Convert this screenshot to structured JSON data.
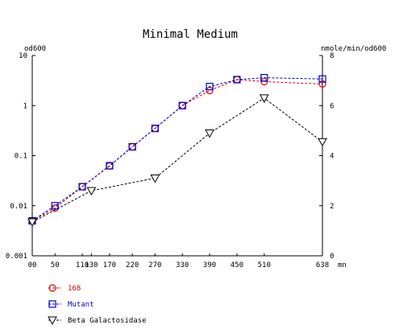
{
  "chart_data": {
    "type": "line",
    "title": "Minimal Medium",
    "x_unit": "mn",
    "x_ticks": [
      "00",
      "50",
      "110",
      "130",
      "170",
      "220",
      "270",
      "330",
      "390",
      "450",
      "510",
      "638"
    ],
    "xlim": [
      0,
      638
    ],
    "left_axis": {
      "label": "od600",
      "scale": "log",
      "ylim": [
        0.001,
        10
      ],
      "ticks": [
        {
          "value": 10,
          "label": "10"
        },
        {
          "value": 1,
          "label": "1"
        },
        {
          "value": 0.1,
          "label": "0.1"
        },
        {
          "value": 0.01,
          "label": "0.01"
        },
        {
          "value": 0.001,
          "label": "0.001"
        }
      ]
    },
    "right_axis": {
      "label": "nmole/min/od600",
      "scale": "linear",
      "ylim": [
        0,
        8
      ],
      "ticks": [
        {
          "value": 8,
          "label": "8"
        },
        {
          "value": 6,
          "label": "6"
        },
        {
          "value": 4,
          "label": "4"
        },
        {
          "value": 2,
          "label": "2"
        },
        {
          "value": 0,
          "label": "0"
        }
      ]
    },
    "grid": false,
    "legend_position": "bottom-left",
    "series": [
      {
        "name": "168",
        "axis": "left",
        "marker": "circle",
        "color": "#e00000",
        "x": [
          0,
          50,
          110,
          170,
          220,
          270,
          330,
          390,
          450,
          510,
          638
        ],
        "y": [
          0.005,
          0.009,
          0.024,
          0.062,
          0.15,
          0.35,
          1.0,
          2.0,
          3.3,
          3.0,
          2.7
        ]
      },
      {
        "name": "Mutant",
        "axis": "left",
        "marker": "square",
        "color": "#0000cc",
        "x": [
          0,
          50,
          110,
          170,
          220,
          270,
          330,
          390,
          450,
          510,
          638
        ],
        "y": [
          0.005,
          0.01,
          0.024,
          0.063,
          0.15,
          0.35,
          1.0,
          2.4,
          3.3,
          3.6,
          3.4
        ]
      },
      {
        "name": "Beta Galactosidase",
        "axis": "right",
        "marker": "triangle-down",
        "color": "#000000",
        "x": [
          0,
          130,
          270,
          390,
          510,
          638
        ],
        "y": [
          1.35,
          2.6,
          3.1,
          4.9,
          6.3,
          4.55
        ]
      }
    ]
  }
}
